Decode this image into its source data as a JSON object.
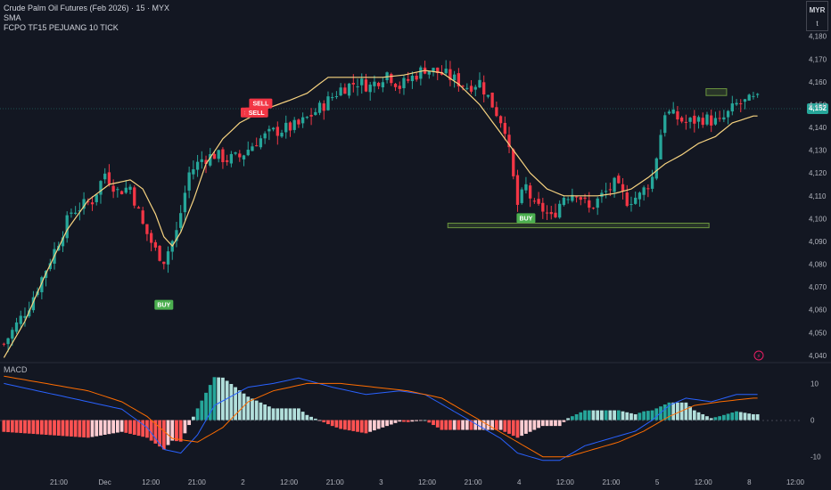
{
  "header": {
    "symbol_line": "Crude Palm Oil Futures (Feb 2026) · 15 · MYX",
    "indicator_1": "SMA",
    "indicator_2": "FCPO TF15 PEJUANG 10 TICK"
  },
  "currency": {
    "code": "MYR",
    "sub": "t"
  },
  "last_price": "4,152",
  "macd_label": "MACD",
  "colors": {
    "background": "#131722",
    "up": "#26a69a",
    "down": "#f23645",
    "sma": "#f7d380",
    "macd_line": "#2962ff",
    "signal_line": "#ff6d00",
    "hist_up_strong": "#26a69a",
    "hist_up_weak": "#b2dfdb",
    "hist_down_strong": "#ff5252",
    "hist_down_weak": "#ffcdd2",
    "zone": "#8bc34a",
    "buy_marker": "#4caf50",
    "sell_marker": "#f23645"
  },
  "chart_data": [
    {
      "type": "candlestick",
      "title": "Crude Palm Oil Futures (Feb 2026) · 15 · MYX",
      "y_axis": {
        "range": [
          4038,
          4192
        ],
        "ticks": [
          "4,180",
          "4,170",
          "4,160",
          "4,150",
          "4,140",
          "4,130",
          "4,120",
          "4,110",
          "4,100",
          "4,090",
          "4,080",
          "4,070",
          "4,060",
          "4,050",
          "4,040"
        ]
      },
      "x_axis_labels": [
        "21:00",
        "Dec",
        "12:00",
        "21:00",
        "2",
        "12:00",
        "21:00",
        "3",
        "12:00",
        "21:00",
        "4",
        "12:00",
        "21:00",
        "5",
        "12:00",
        "8",
        "12:00"
      ],
      "trend_anchors": [
        [
          0,
          4045
        ],
        [
          6,
          4062
        ],
        [
          12,
          4086
        ],
        [
          16,
          4103
        ],
        [
          21,
          4108
        ],
        [
          24,
          4120
        ],
        [
          27,
          4112
        ],
        [
          30,
          4114
        ],
        [
          33,
          4097
        ],
        [
          36,
          4086
        ],
        [
          38,
          4082
        ],
        [
          41,
          4094
        ],
        [
          44,
          4120
        ],
        [
          47,
          4126
        ],
        [
          50,
          4128
        ],
        [
          53,
          4126
        ],
        [
          56,
          4127
        ],
        [
          60,
          4134
        ],
        [
          64,
          4138
        ],
        [
          70,
          4141
        ],
        [
          76,
          4150
        ],
        [
          80,
          4157
        ],
        [
          84,
          4160
        ],
        [
          87,
          4158
        ],
        [
          91,
          4164
        ],
        [
          94,
          4158
        ],
        [
          97,
          4162
        ],
        [
          100,
          4166
        ],
        [
          105,
          4163
        ],
        [
          110,
          4158
        ],
        [
          113,
          4160
        ],
        [
          116,
          4150
        ],
        [
          119,
          4140
        ],
        [
          122,
          4106
        ],
        [
          124,
          4114
        ],
        [
          126,
          4105
        ],
        [
          128,
          4104
        ],
        [
          130,
          4100
        ],
        [
          133,
          4110
        ],
        [
          136,
          4112
        ],
        [
          139,
          4104
        ],
        [
          142,
          4110
        ],
        [
          145,
          4115
        ],
        [
          148,
          4108
        ],
        [
          151,
          4110
        ],
        [
          154,
          4118
        ],
        [
          157,
          4147
        ],
        [
          162,
          4142
        ],
        [
          166,
          4144
        ],
        [
          170,
          4142
        ],
        [
          174,
          4150
        ],
        [
          178,
          4152
        ]
      ],
      "sma_anchors": [
        [
          0,
          4039
        ],
        [
          5,
          4055
        ],
        [
          10,
          4076
        ],
        [
          15,
          4095
        ],
        [
          20,
          4108
        ],
        [
          25,
          4115
        ],
        [
          30,
          4117
        ],
        [
          33,
          4113
        ],
        [
          36,
          4102
        ],
        [
          38,
          4092
        ],
        [
          40,
          4088
        ],
        [
          42,
          4094
        ],
        [
          45,
          4108
        ],
        [
          48,
          4124
        ],
        [
          52,
          4135
        ],
        [
          56,
          4142
        ],
        [
          62,
          4148
        ],
        [
          68,
          4152
        ],
        [
          72,
          4155
        ],
        [
          77,
          4162
        ],
        [
          80,
          4162
        ],
        [
          85,
          4162
        ],
        [
          90,
          4162
        ],
        [
          95,
          4163
        ],
        [
          100,
          4165
        ],
        [
          104,
          4164
        ],
        [
          108,
          4159
        ],
        [
          113,
          4150
        ],
        [
          117,
          4140
        ],
        [
          121,
          4130
        ],
        [
          125,
          4120
        ],
        [
          129,
          4113
        ],
        [
          133,
          4110
        ],
        [
          137,
          4110
        ],
        [
          141,
          4110
        ],
        [
          145,
          4111
        ],
        [
          149,
          4113
        ],
        [
          153,
          4118
        ],
        [
          157,
          4124
        ],
        [
          161,
          4128
        ],
        [
          165,
          4133
        ],
        [
          169,
          4136
        ],
        [
          173,
          4142
        ],
        [
          178,
          4145
        ]
      ],
      "zones": [
        {
          "label": "resistance",
          "x1": 4.8,
          "x2": 4.94,
          "y1": 4154,
          "y2": 4157
        },
        {
          "label": "support",
          "x1": 3.04,
          "x2": 4.82,
          "y1": 4096,
          "y2": 4098
        }
      ],
      "signals": [
        {
          "text": "BUY",
          "bar": 38,
          "price": 4062,
          "side": "buy"
        },
        {
          "text": "SELL",
          "bar": 61,
          "price": 4148,
          "side": "sell"
        },
        {
          "text": "SELL",
          "bar": 59,
          "price": 4144,
          "side": "sell"
        },
        {
          "text": "SELL",
          "bar": 60,
          "price": 4144,
          "side": "sell"
        },
        {
          "text": "BUY",
          "bar": 124,
          "price": 4100,
          "side": "buy"
        }
      ],
      "bars": 180
    },
    {
      "type": "macd",
      "title": "MACD",
      "y_axis": {
        "range": [
          -13,
          14
        ],
        "ticks": [
          "10",
          "0",
          "-10"
        ]
      },
      "macd_anchors": [
        [
          0,
          10
        ],
        [
          10,
          7.5
        ],
        [
          20,
          5
        ],
        [
          28,
          3
        ],
        [
          34,
          -2
        ],
        [
          38,
          -8
        ],
        [
          42,
          -9
        ],
        [
          46,
          -4
        ],
        [
          50,
          4
        ],
        [
          58,
          9
        ],
        [
          64,
          10
        ],
        [
          70,
          11.5
        ],
        [
          78,
          9
        ],
        [
          86,
          7
        ],
        [
          94,
          8
        ],
        [
          100,
          7
        ],
        [
          106,
          3
        ],
        [
          112,
          -1
        ],
        [
          118,
          -5
        ],
        [
          122,
          -9
        ],
        [
          128,
          -11
        ],
        [
          132,
          -11
        ],
        [
          138,
          -7
        ],
        [
          144,
          -5
        ],
        [
          150,
          -3
        ],
        [
          154,
          0
        ],
        [
          158,
          4
        ],
        [
          162,
          6
        ],
        [
          168,
          5
        ],
        [
          174,
          7
        ],
        [
          178,
          7
        ]
      ],
      "signal_anchors": [
        [
          0,
          12
        ],
        [
          10,
          10
        ],
        [
          20,
          8
        ],
        [
          28,
          5
        ],
        [
          34,
          1
        ],
        [
          40,
          -5
        ],
        [
          46,
          -6
        ],
        [
          52,
          -2
        ],
        [
          58,
          5
        ],
        [
          64,
          8
        ],
        [
          72,
          10
        ],
        [
          80,
          10
        ],
        [
          88,
          9
        ],
        [
          96,
          8
        ],
        [
          104,
          6
        ],
        [
          110,
          2
        ],
        [
          116,
          -2
        ],
        [
          122,
          -6
        ],
        [
          128,
          -10
        ],
        [
          134,
          -10
        ],
        [
          140,
          -8
        ],
        [
          146,
          -6
        ],
        [
          152,
          -3
        ],
        [
          158,
          1
        ],
        [
          164,
          4
        ],
        [
          170,
          5
        ],
        [
          178,
          6
        ]
      ]
    }
  ]
}
